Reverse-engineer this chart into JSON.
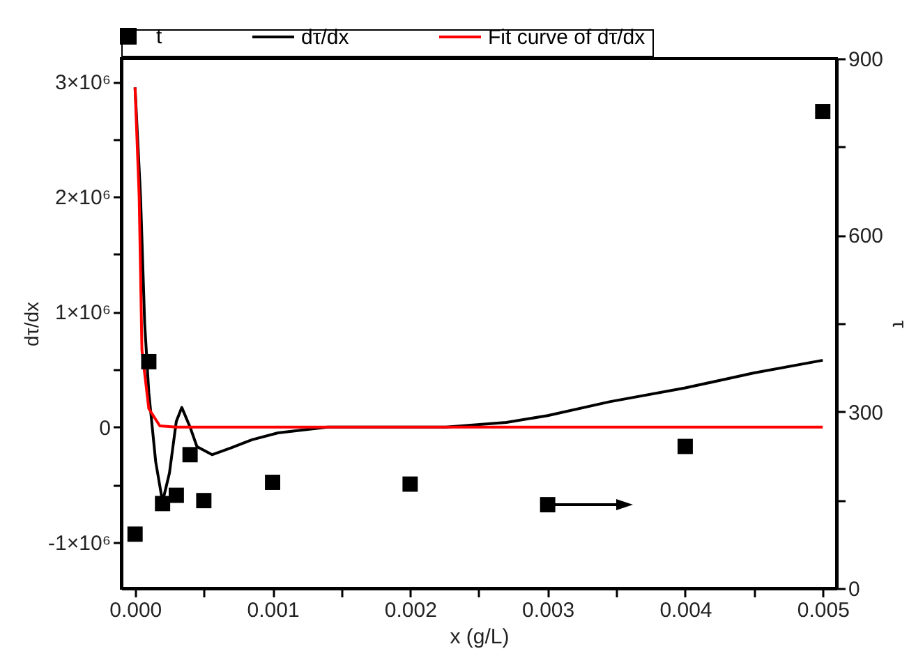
{
  "chart_data": {
    "type": "line",
    "xlabel": "x (g/L)",
    "ylabel": "dτ/dx",
    "y2label": "τ",
    "legend": "top",
    "grid": false,
    "xlim": [
      -0.0001,
      0.0051
    ],
    "xticks": [
      {
        "value": 0,
        "label": "0.000"
      },
      {
        "value": 0.0005,
        "label": null
      },
      {
        "value": 0.001,
        "label": "0.001"
      },
      {
        "value": 0.0015,
        "label": null
      },
      {
        "value": 0.002,
        "label": "0.002"
      },
      {
        "value": 0.0025,
        "label": null
      },
      {
        "value": 0.003,
        "label": "0.003"
      },
      {
        "value": 0.0035,
        "label": null
      },
      {
        "value": 0.004,
        "label": "0.004"
      },
      {
        "value": 0.0045,
        "label": null
      },
      {
        "value": 0.005,
        "label": "0.005"
      }
    ],
    "ylim": [
      -1400000,
      3200000
    ],
    "yticks": [
      {
        "value": -1000000,
        "label": "-1×10⁶"
      },
      {
        "value": -500000,
        "label": null
      },
      0,
      {
        "value": 500000,
        "label": null
      },
      {
        "value": 1000000,
        "label": "1×10⁶"
      },
      {
        "value": 1500000,
        "label": null
      },
      {
        "value": 2000000,
        "label": "2×10⁶"
      },
      {
        "value": 2500000,
        "label": null
      },
      {
        "value": 3000000,
        "label": "3×10⁶"
      }
    ],
    "y2lim": [
      0,
      900
    ],
    "y2ticks": [
      0,
      {
        "value": 150,
        "label": null
      },
      300,
      {
        "value": 450,
        "label": null
      },
      600,
      {
        "value": 750,
        "label": null
      },
      900
    ],
    "series": [
      {
        "name": "t",
        "type": "scatter",
        "axis": "y2",
        "marker": "square",
        "color": "#000000",
        "x": [
          0,
          0.0001,
          0.0002,
          0.0003,
          0.0004,
          0.0005,
          0.001,
          0.002,
          0.003,
          0.004,
          0.005
        ],
        "values": [
          92,
          385,
          144,
          158,
          227,
          149,
          180,
          177,
          142,
          241,
          810
        ]
      },
      {
        "name": "dτ/dx",
        "type": "line",
        "color": "#000000",
        "x": [
          0,
          4e-05,
          7e-05,
          0.0001,
          0.00015,
          0.0002,
          0.00025,
          0.0003,
          0.00034,
          0.0004,
          0.00045,
          0.00056,
          0.0007,
          0.00085,
          0.00104,
          0.0014,
          0.002,
          0.00226,
          0.0027,
          0.003,
          0.00345,
          0.004,
          0.0045,
          0.005
        ],
        "values": [
          2950000,
          2000000,
          900000,
          300000,
          -300000,
          -650000,
          -400000,
          50000,
          170000,
          0,
          -170000,
          -240000,
          -180000,
          -110000,
          -50000,
          0,
          0,
          0,
          40000,
          100000,
          220000,
          340000,
          470000,
          580000
        ]
      },
      {
        "name": "Fit curve of dτ/dx",
        "type": "line",
        "color": "#ff0000",
        "x": [
          0,
          3e-05,
          5e-05,
          0.0001,
          0.00018,
          0.0003,
          0.005
        ],
        "values": [
          2950000,
          2000000,
          670000,
          160000,
          10000,
          0,
          0
        ]
      }
    ]
  }
}
